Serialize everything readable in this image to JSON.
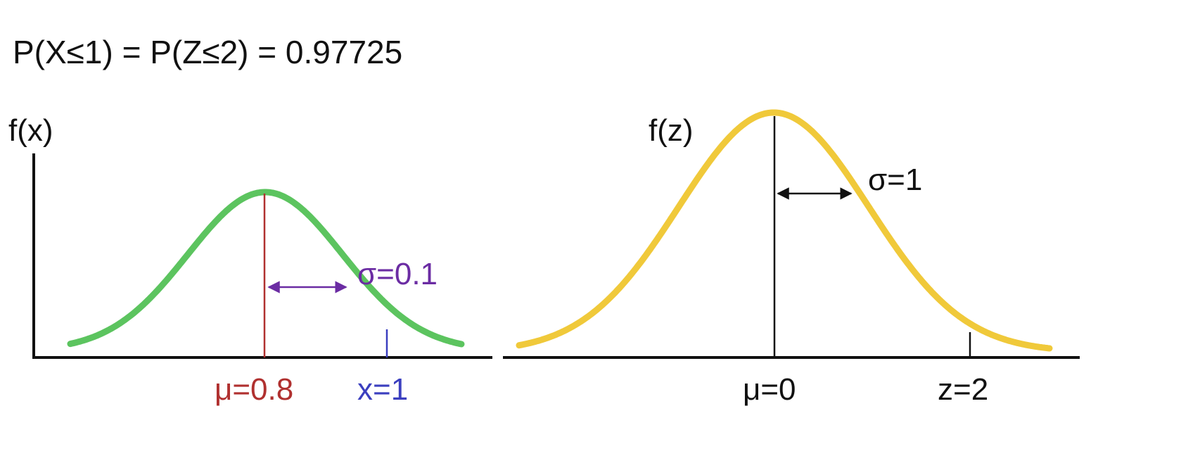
{
  "header": {
    "equation": "P(X≤1) = P(Z≤2) = 0.97725"
  },
  "left_plot": {
    "y_label": "f(x)",
    "mean_label": "μ=0.8",
    "sigma_label": "σ=0.1",
    "x_marker_label": "x=1",
    "mu": 0.8,
    "sigma": 0.1,
    "x_marker": 1,
    "curve_color": "#5cc45f",
    "mean_color": "#b0302f",
    "sigma_color": "#6b2ca3",
    "marker_color": "#3b3fbf"
  },
  "right_plot": {
    "y_label": "f(z)",
    "mean_label": "μ=0",
    "sigma_label": "σ=1",
    "z_marker_label": "z=2",
    "mu": 0,
    "sigma": 1,
    "z_marker": 2,
    "curve_color": "#f0c93a",
    "line_color": "#111111"
  }
}
